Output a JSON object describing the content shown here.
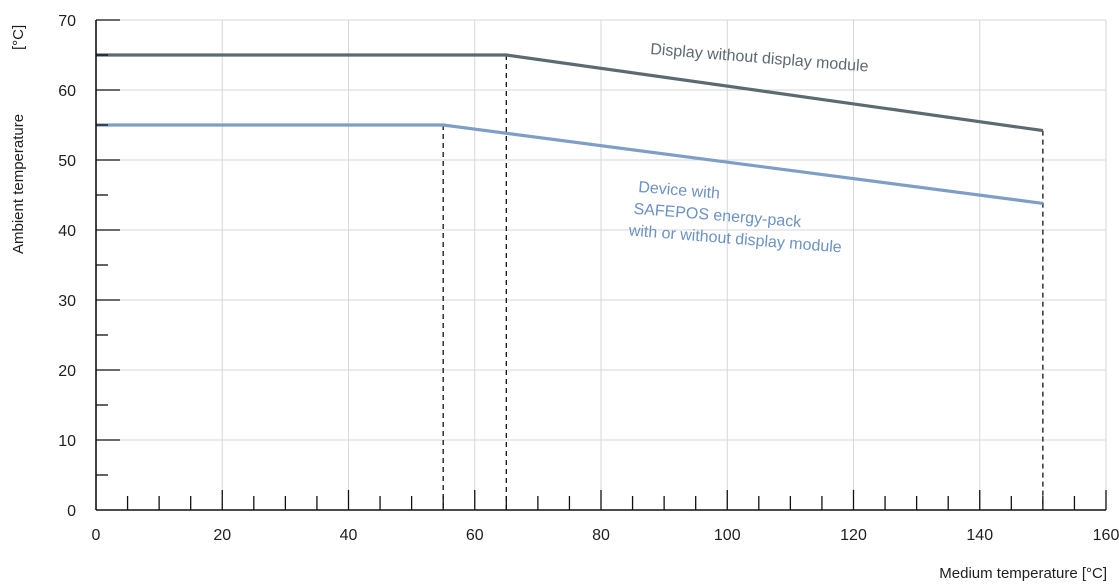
{
  "chart_data": {
    "type": "line",
    "xlabel": "Medium temperature [°C]",
    "ylabel": "Ambient temperature",
    "ylabel_unit": "[°C]",
    "xlim": [
      0,
      160
    ],
    "ylim": [
      0,
      70
    ],
    "x_ticks": [
      0,
      20,
      40,
      60,
      80,
      100,
      120,
      140,
      160
    ],
    "y_ticks": [
      0,
      10,
      20,
      30,
      40,
      50,
      60,
      70
    ],
    "x_tick_labels": [
      "0",
      "20",
      "40",
      "60",
      "80",
      "100",
      "120",
      "140",
      "160"
    ],
    "y_tick_labels": [
      "0",
      "10",
      "20",
      "30",
      "40",
      "50",
      "60",
      "70"
    ],
    "x_minor_step": 5,
    "y_minor_step": 5,
    "grid": true,
    "grid_color": "#d7d7d7",
    "series": [
      {
        "name": "Display without display module",
        "color": "#5c6a72",
        "points": [
          [
            0,
            65
          ],
          [
            65,
            65
          ],
          [
            150,
            54.2
          ]
        ]
      },
      {
        "name": "Device with SAFEPOS energy-pack with or without display module",
        "color": "#7e9ec7",
        "points": [
          [
            0,
            55
          ],
          [
            55,
            55
          ],
          [
            150,
            43.8
          ]
        ]
      }
    ],
    "annotations": [
      {
        "series": 0,
        "lines": [
          "Display without display module"
        ],
        "color": "#5c6a72"
      },
      {
        "series": 1,
        "lines": [
          "Device with",
          "SAFEPOS energy-pack",
          "with or without display module"
        ],
        "color": "#6b92c4"
      }
    ],
    "dashed_verticals": [
      {
        "x": 55,
        "y": 55
      },
      {
        "x": 65,
        "y": 65
      },
      {
        "x": 150,
        "y": 54.2
      }
    ]
  }
}
